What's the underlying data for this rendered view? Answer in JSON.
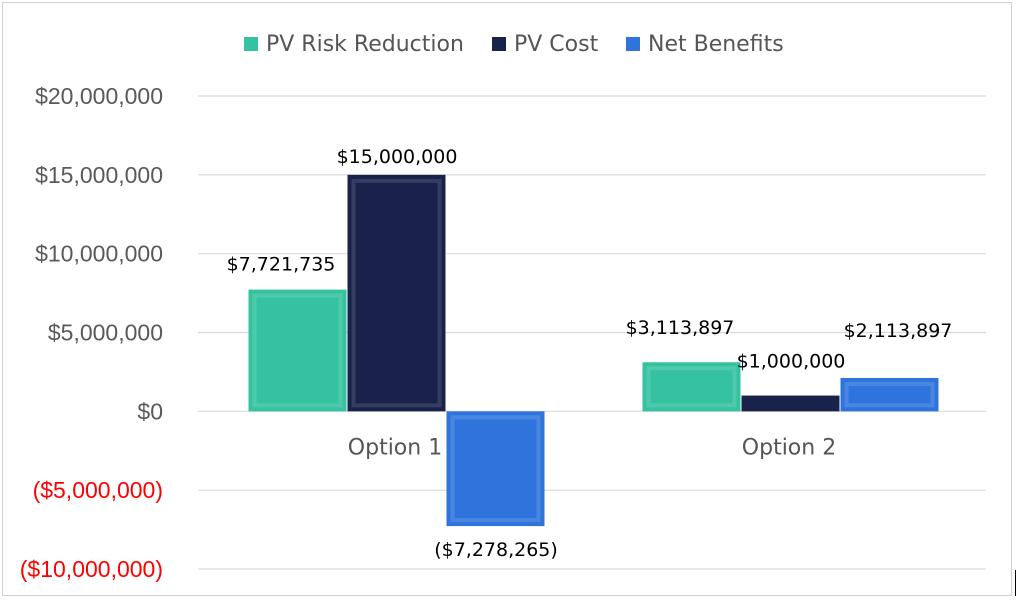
{
  "chart_data": {
    "type": "bar",
    "categories": [
      "Option 1",
      "Option 2"
    ],
    "series": [
      {
        "name": "PV Risk Reduction",
        "color": "#35c2a0",
        "values": [
          7721735,
          3113897
        ]
      },
      {
        "name": "PV Cost",
        "color": "#18224a",
        "values": [
          15000000,
          1000000
        ]
      },
      {
        "name": "Net Benefits",
        "color": "#2e74dc",
        "values": [
          -7278265,
          2113897
        ]
      }
    ],
    "data_labels": [
      [
        "$7,721,735",
        "$3,113,897"
      ],
      [
        "$15,000,000",
        "$1,000,000"
      ],
      [
        "($7,278,265)",
        "$2,113,897"
      ]
    ],
    "y_ticks": [
      {
        "value": 20000000,
        "label": "$20,000,000"
      },
      {
        "value": 15000000,
        "label": "$15,000,000"
      },
      {
        "value": 10000000,
        "label": "$10,000,000"
      },
      {
        "value": 5000000,
        "label": "$5,000,000"
      },
      {
        "value": 0,
        "label": "$0"
      },
      {
        "value": -5000000,
        "label": "($5,000,000)"
      },
      {
        "value": -10000000,
        "label": "($10,000,000)"
      }
    ],
    "ylim": [
      -10000000,
      20000000
    ],
    "negative_label_color": "#ff0000",
    "grid": true,
    "legend_position": "top-center",
    "title": "",
    "xlabel": "",
    "ylabel": ""
  }
}
